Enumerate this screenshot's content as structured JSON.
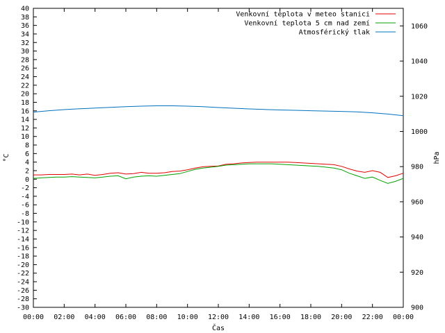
{
  "chart_data": {
    "type": "line",
    "title": "",
    "xlabel": "Čas",
    "ylabel": "°C",
    "y2label": "hPa",
    "xticks": [
      "00:00",
      "02:00",
      "04:00",
      "06:00",
      "08:00",
      "10:00",
      "12:00",
      "14:00",
      "16:00",
      "18:00",
      "20:00",
      "22:00",
      "00:00"
    ],
    "xlim": [
      0,
      24
    ],
    "ylim": [
      -30,
      40
    ],
    "y_tick_step": 2,
    "y2lim": [
      900,
      1070
    ],
    "y2ticks": [
      900,
      920,
      940,
      960,
      980,
      1000,
      1020,
      1040,
      1060
    ],
    "grid": false,
    "legend_position": "top-right",
    "series": [
      {
        "name": "Venkovní teplota v meteo stanici",
        "axis": "left",
        "color": "#e00000",
        "x": [
          0,
          0.5,
          1,
          1.5,
          2,
          2.5,
          3,
          3.5,
          4,
          4.5,
          5,
          5.5,
          6,
          6.5,
          7,
          7.5,
          8,
          8.5,
          9,
          9.5,
          10,
          10.5,
          11,
          11.5,
          12,
          12.5,
          13,
          13.5,
          14,
          14.5,
          15,
          15.5,
          16,
          16.5,
          17,
          17.5,
          18,
          18.5,
          19,
          19.5,
          20,
          20.5,
          21,
          21.5,
          22,
          22.5,
          23,
          23.5,
          24
        ],
        "values": [
          1.0,
          1.0,
          1.1,
          1.1,
          1.1,
          1.2,
          1.0,
          1.2,
          0.9,
          1.1,
          1.4,
          1.5,
          1.2,
          1.3,
          1.6,
          1.4,
          1.4,
          1.5,
          1.8,
          1.9,
          2.2,
          2.6,
          2.9,
          3.0,
          3.1,
          3.5,
          3.6,
          3.8,
          3.9,
          4.0,
          4.0,
          4.0,
          4.0,
          4.0,
          3.9,
          3.8,
          3.7,
          3.6,
          3.5,
          3.4,
          3.0,
          2.4,
          1.9,
          1.6,
          2.0,
          1.6,
          0.4,
          0.8,
          1.4
        ]
      },
      {
        "name": "Venkovní teplota 5 cm nad zemí",
        "axis": "left",
        "color": "#00a000",
        "x": [
          0,
          0.5,
          1,
          1.5,
          2,
          2.5,
          3,
          3.5,
          4,
          4.5,
          5,
          5.5,
          6,
          6.5,
          7,
          7.5,
          8,
          8.5,
          9,
          9.5,
          10,
          10.5,
          11,
          11.5,
          12,
          12.5,
          13,
          13.5,
          14,
          14.5,
          15,
          15.5,
          16,
          16.5,
          17,
          17.5,
          18,
          18.5,
          19,
          19.5,
          20,
          20.5,
          21,
          21.5,
          22,
          22.5,
          23,
          23.5,
          24
        ],
        "values": [
          0.2,
          0.3,
          0.4,
          0.5,
          0.5,
          0.6,
          0.5,
          0.4,
          0.3,
          0.5,
          0.7,
          0.8,
          0.1,
          0.5,
          0.7,
          0.8,
          0.7,
          0.9,
          1.1,
          1.3,
          1.8,
          2.3,
          2.6,
          2.8,
          3.0,
          3.3,
          3.4,
          3.5,
          3.6,
          3.6,
          3.6,
          3.6,
          3.5,
          3.4,
          3.3,
          3.2,
          3.1,
          3.0,
          2.8,
          2.6,
          2.2,
          1.4,
          0.8,
          0.2,
          0.5,
          -0.3,
          -1.0,
          -0.5,
          0.2
        ]
      },
      {
        "name": "Atmosférický tlak",
        "axis": "right",
        "color": "#0070c0",
        "x": [
          0,
          1,
          2,
          3,
          4,
          5,
          6,
          7,
          8,
          9,
          10,
          11,
          12,
          13,
          14,
          15,
          16,
          17,
          18,
          19,
          20,
          21,
          22,
          23,
          24
        ],
        "values": [
          1011.0,
          1011.8,
          1012.4,
          1012.9,
          1013.3,
          1013.7,
          1014.1,
          1014.4,
          1014.6,
          1014.6,
          1014.4,
          1014.1,
          1013.6,
          1013.2,
          1012.8,
          1012.5,
          1012.2,
          1012.0,
          1011.8,
          1011.6,
          1011.4,
          1011.1,
          1010.6,
          1009.9,
          1009.0
        ]
      }
    ]
  }
}
